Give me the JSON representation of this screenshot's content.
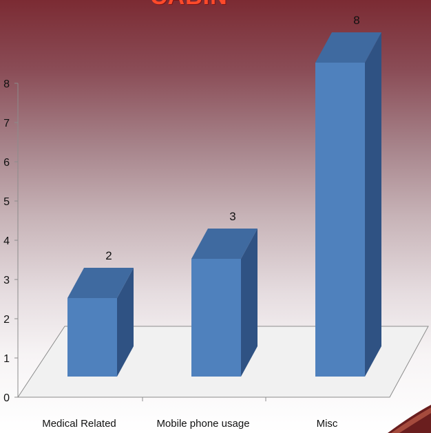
{
  "slide": {
    "title_fragment": "CABIN"
  },
  "chart_data": {
    "type": "bar",
    "categories": [
      "Medical Related",
      "Mobile phone usage",
      "Misc"
    ],
    "values": [
      2,
      3,
      8
    ],
    "title": "",
    "xlabel": "",
    "ylabel": "",
    "ylim": [
      0,
      8
    ],
    "yticks": [
      0,
      1,
      2,
      3,
      4,
      5,
      6,
      7,
      8
    ],
    "data_labels": [
      "2",
      "3",
      "8"
    ],
    "grid": false,
    "legend": "none",
    "style": "3d-column",
    "colors": {
      "front": "#4f81bd",
      "top": "#3f6aa0",
      "side": "#2f5283",
      "floor": "#f1f1f1",
      "axis": "#8c8c8c"
    }
  }
}
